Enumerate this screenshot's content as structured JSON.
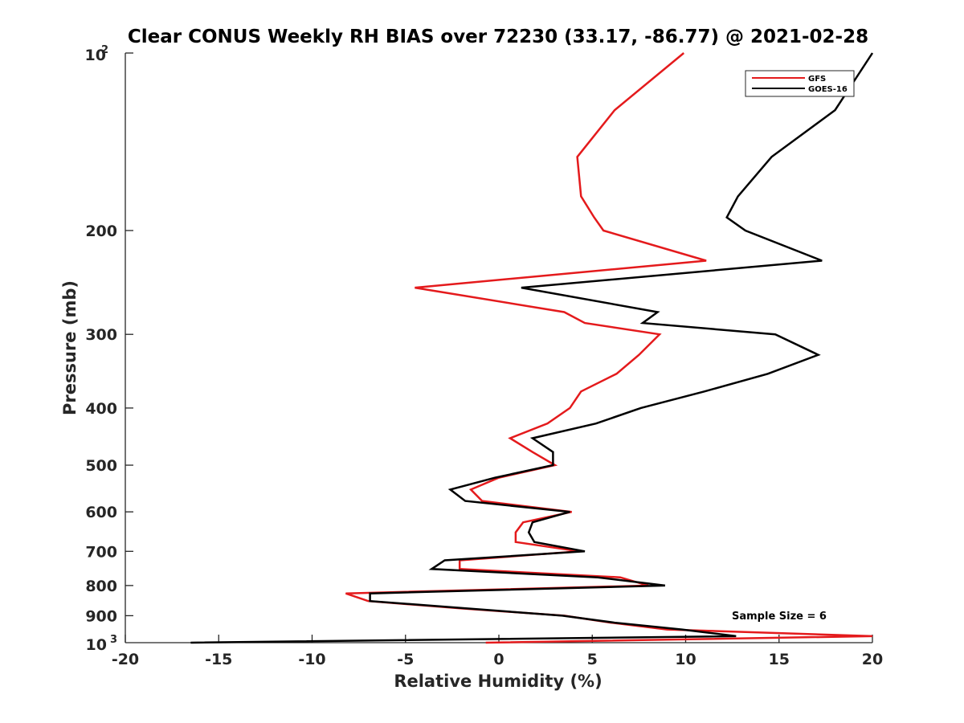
{
  "chart_data": {
    "type": "line",
    "title": "Clear CONUS Weekly RH BIAS over 72230 (33.17, -86.77) @ 2021-02-28",
    "xlabel": "Relative Humidity (%)",
    "ylabel": "Pressure (mb)",
    "xlim": [
      -20,
      20
    ],
    "ylim": [
      100,
      1000
    ],
    "yscale": "log",
    "yaxis_reversed": true,
    "x_ticks": [
      -20,
      -15,
      -10,
      -5,
      0,
      5,
      10,
      15,
      20
    ],
    "x_tick_labels": [
      "-20",
      "-15",
      "-10",
      "-5",
      "0",
      "5",
      "10",
      "15",
      "20"
    ],
    "y_ticks": [
      200,
      300,
      400,
      500,
      600,
      700,
      800,
      900
    ],
    "y_tick_labels": [
      "200",
      "300",
      "400",
      "500",
      "600",
      "700",
      "800",
      "900"
    ],
    "y_top_label": {
      "base": "10",
      "exp": "2"
    },
    "y_bottom_label": {
      "base": "10",
      "exp": "3"
    },
    "legend_position": "top-right",
    "annotation": "Sample Size = 6",
    "series": [
      {
        "name": "GFS",
        "color": "#e41a1c",
        "points": [
          [
            9.9,
            100
          ],
          [
            6.2,
            125
          ],
          [
            4.2,
            150
          ],
          [
            4.4,
            175
          ],
          [
            5.1,
            190
          ],
          [
            5.6,
            200
          ],
          [
            11.1,
            225
          ],
          [
            -4.5,
            250
          ],
          [
            3.5,
            275
          ],
          [
            4.6,
            287
          ],
          [
            8.6,
            300
          ],
          [
            7.5,
            325
          ],
          [
            6.3,
            350
          ],
          [
            4.4,
            375
          ],
          [
            3.8,
            400
          ],
          [
            2.6,
            425
          ],
          [
            0.6,
            450
          ],
          [
            1.8,
            475
          ],
          [
            3.0,
            500
          ],
          [
            0.0,
            525
          ],
          [
            -1.5,
            550
          ],
          [
            -0.9,
            575
          ],
          [
            3.9,
            600
          ],
          [
            1.3,
            625
          ],
          [
            0.9,
            650
          ],
          [
            0.9,
            675
          ],
          [
            4.3,
            700
          ],
          [
            -2.1,
            725
          ],
          [
            -2.1,
            750
          ],
          [
            6.5,
            775
          ],
          [
            8.0,
            800
          ],
          [
            -8.2,
            825
          ],
          [
            -7.0,
            850
          ],
          [
            -2.0,
            875
          ],
          [
            3.5,
            900
          ],
          [
            6.0,
            925
          ],
          [
            9.0,
            950
          ],
          [
            20.0,
            975
          ],
          [
            -0.7,
            1000
          ]
        ]
      },
      {
        "name": "GOES-16",
        "color": "#000000",
        "points": [
          [
            20.0,
            100
          ],
          [
            18.0,
            125
          ],
          [
            14.6,
            150
          ],
          [
            12.8,
            175
          ],
          [
            12.2,
            190
          ],
          [
            13.2,
            200
          ],
          [
            17.3,
            225
          ],
          [
            1.2,
            250
          ],
          [
            8.5,
            275
          ],
          [
            7.7,
            287
          ],
          [
            14.8,
            300
          ],
          [
            17.1,
            325
          ],
          [
            14.4,
            350
          ],
          [
            11.0,
            375
          ],
          [
            7.6,
            400
          ],
          [
            5.2,
            425
          ],
          [
            1.8,
            450
          ],
          [
            2.9,
            475
          ],
          [
            2.9,
            500
          ],
          [
            -0.2,
            525
          ],
          [
            -2.6,
            550
          ],
          [
            -1.8,
            575
          ],
          [
            3.8,
            600
          ],
          [
            1.8,
            625
          ],
          [
            1.6,
            650
          ],
          [
            1.9,
            675
          ],
          [
            4.6,
            700
          ],
          [
            -2.9,
            725
          ],
          [
            -3.6,
            750
          ],
          [
            5.3,
            775
          ],
          [
            8.9,
            800
          ],
          [
            -6.9,
            825
          ],
          [
            -6.9,
            850
          ],
          [
            -1.7,
            875
          ],
          [
            3.4,
            900
          ],
          [
            6.2,
            925
          ],
          [
            9.8,
            950
          ],
          [
            12.7,
            975
          ],
          [
            -16.5,
            1000
          ]
        ]
      }
    ]
  }
}
